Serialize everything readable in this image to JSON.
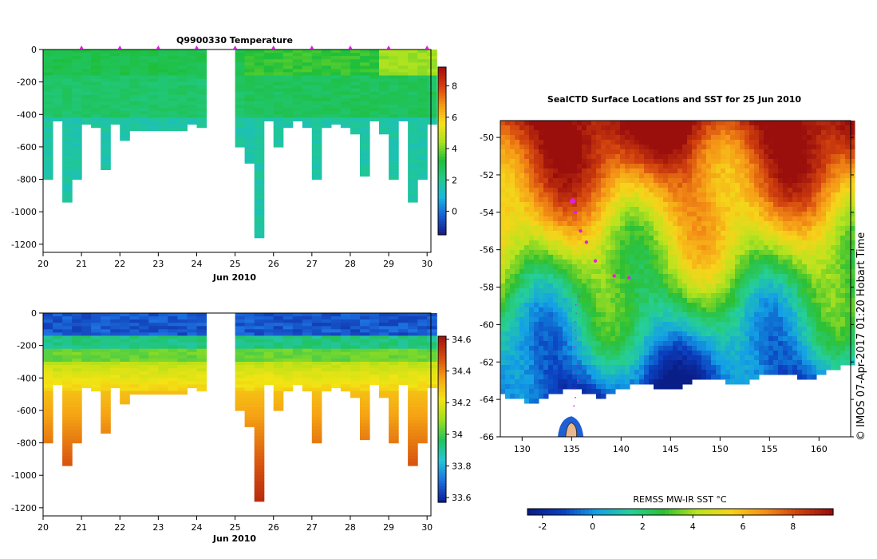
{
  "colors": {
    "temp_ramp": [
      "#1a1d8a",
      "#1560d6",
      "#18b8e0",
      "#22c98a",
      "#1fbf3a",
      "#a8e220",
      "#f4e21a",
      "#f39a12",
      "#d9420e",
      "#a8100e"
    ],
    "salt_ramp": [
      "#0a1f9a",
      "#1d6fe0",
      "#23c6d8",
      "#21c45e",
      "#9ddf1a",
      "#f3e414",
      "#f6a514",
      "#d6500e",
      "#a5150e"
    ],
    "sst_ramp": [
      "#0a1e88",
      "#0b3fc0",
      "#14a0e6",
      "#25cf9a",
      "#2cc034",
      "#b9e41e",
      "#f6d41a",
      "#f59116",
      "#d0400e",
      "#9a0e0c"
    ],
    "marker": "#dd22dd",
    "land": "#ffffff",
    "antarctica": "#e8b890"
  },
  "chart_data": [
    {
      "id": "temperature",
      "type": "heatmap",
      "title": "Q9900330  Temperature",
      "xlabel": "Jun 2010",
      "ylabel": "",
      "xlim": [
        20,
        30.1
      ],
      "ylim": [
        -1250,
        0
      ],
      "x_ticks": [
        "20",
        "21",
        "22",
        "23",
        "24",
        "25",
        "26",
        "27",
        "28",
        "29",
        "30"
      ],
      "y_ticks": [
        "0",
        "-200",
        "-400",
        "-600",
        "-800",
        "-1000",
        "-1200"
      ],
      "y_tick_values": [
        0,
        -200,
        -400,
        -600,
        -800,
        -1000,
        -1200
      ],
      "colorbar_range": [
        -1.5,
        9.2
      ],
      "colorbar_ticks": [
        "0",
        "2",
        "4",
        "6",
        "8"
      ],
      "colorbar_tick_values": [
        0,
        2,
        4,
        6,
        8
      ],
      "gap": [
        24.05,
        24.8
      ],
      "profile_markers": [
        21,
        22,
        23,
        24,
        25,
        26,
        27,
        28,
        29,
        30
      ]
    },
    {
      "id": "salinity",
      "type": "heatmap",
      "title": "",
      "xlabel": "Jun 2010",
      "ylabel": "",
      "xlim": [
        20,
        30.1
      ],
      "ylim": [
        -1250,
        0
      ],
      "x_ticks": [
        "20",
        "21",
        "22",
        "23",
        "24",
        "25",
        "26",
        "27",
        "28",
        "29",
        "30"
      ],
      "y_ticks": [
        "0",
        "-200",
        "-400",
        "-600",
        "-800",
        "-1000",
        "-1200"
      ],
      "y_tick_values": [
        0,
        -200,
        -400,
        -600,
        -800,
        -1000,
        -1200
      ],
      "colorbar_range": [
        33.57,
        34.62
      ],
      "colorbar_ticks": [
        "33.6",
        "33.8",
        "34",
        "34.2",
        "34.4",
        "34.6"
      ],
      "colorbar_tick_values": [
        33.6,
        33.8,
        34.0,
        34.2,
        34.4,
        34.6
      ],
      "gap": [
        24.05,
        24.8
      ]
    },
    {
      "id": "sst_map",
      "type": "heatmap",
      "title": "SealCTD Surface Locations and SST for 25 Jun 2010",
      "xlim": [
        127.8,
        163.2
      ],
      "ylim": [
        -66,
        -49.1
      ],
      "x_ticks": [
        "130",
        "135",
        "140",
        "145",
        "150",
        "155",
        "160"
      ],
      "x_tick_values": [
        130,
        135,
        140,
        145,
        150,
        155,
        160
      ],
      "y_ticks": [
        "-50",
        "-52",
        "-54",
        "-56",
        "-58",
        "-60",
        "-62",
        "-64",
        "-66"
      ],
      "y_tick_values": [
        -50,
        -52,
        -54,
        -56,
        -58,
        -60,
        -62,
        -64,
        -66
      ],
      "colorbar_label": "REMSS MW-IR SST °C",
      "colorbar_range": [
        -2.6,
        9.6
      ],
      "colorbar_ticks": [
        "-2",
        "0",
        "2",
        "4",
        "6",
        "8"
      ],
      "colorbar_tick_values": [
        -2,
        0,
        2,
        4,
        6,
        8
      ],
      "tracks": [
        {
          "lon": 135.1,
          "lat": -53.4
        },
        {
          "lon": 135.4,
          "lat": -54.0
        },
        {
          "lon": 135.9,
          "lat": -55.0
        },
        {
          "lon": 136.5,
          "lat": -55.6
        },
        {
          "lon": 137.4,
          "lat": -56.6
        },
        {
          "lon": 139.3,
          "lat": -57.4
        },
        {
          "lon": 140.8,
          "lat": -57.5
        }
      ]
    }
  ],
  "credit": "© IMOS 07-Apr-2017 01:20 Hobart Time"
}
